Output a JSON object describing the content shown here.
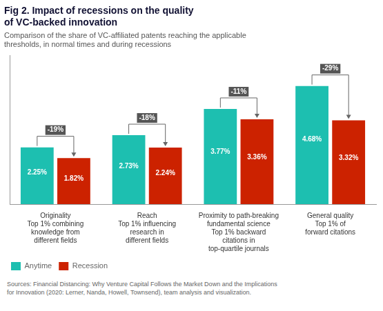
{
  "chart_data": {
    "type": "bar",
    "title": "Fig 2. Impact of recessions on the quality\nof VC-backed innovation",
    "subtitle": "Comparison of the share of VC-affiliated patents reaching the applicable\nthresholds, in normal times and during recessions",
    "source": "Sources: Financial Distancing: Why Venture Capital Follows the Market Down and the Implications\nfor Innovation (2020: Lerner, Nanda, Howell, Townsend), team analysis and visualization.",
    "categories": [
      "Originality",
      "Reach",
      "Proximity to path-breaking\nfundamental science",
      "General quality"
    ],
    "category_subtitles": [
      "Top 1% combining\nknowledge from\ndifferent fields",
      "Top 1% influencing\nresearch in\ndifferent fields",
      "Top 1% backward\ncitations in\ntop-quartile journals",
      "Top 1% of\nforward citations"
    ],
    "series": [
      {
        "name": "Anytime",
        "color": "#1dbfb0",
        "values": [
          2.25,
          2.73,
          3.77,
          4.68
        ],
        "value_labels": [
          "2.25%",
          "2.73%",
          "3.77%",
          "4.68%"
        ]
      },
      {
        "name": "Recession",
        "color": "#cc2200",
        "values": [
          1.82,
          2.24,
          3.36,
          3.32
        ],
        "value_labels": [
          "1.82%",
          "2.24%",
          "3.36%",
          "3.32%"
        ]
      }
    ],
    "annotations": [
      "-19%",
      "-18%",
      "-11%",
      "-29%"
    ],
    "ylim": [
      0,
      5.9
    ],
    "tick_labels": "x",
    "grid": false,
    "legend": "lower left",
    "data_labels": true
  }
}
